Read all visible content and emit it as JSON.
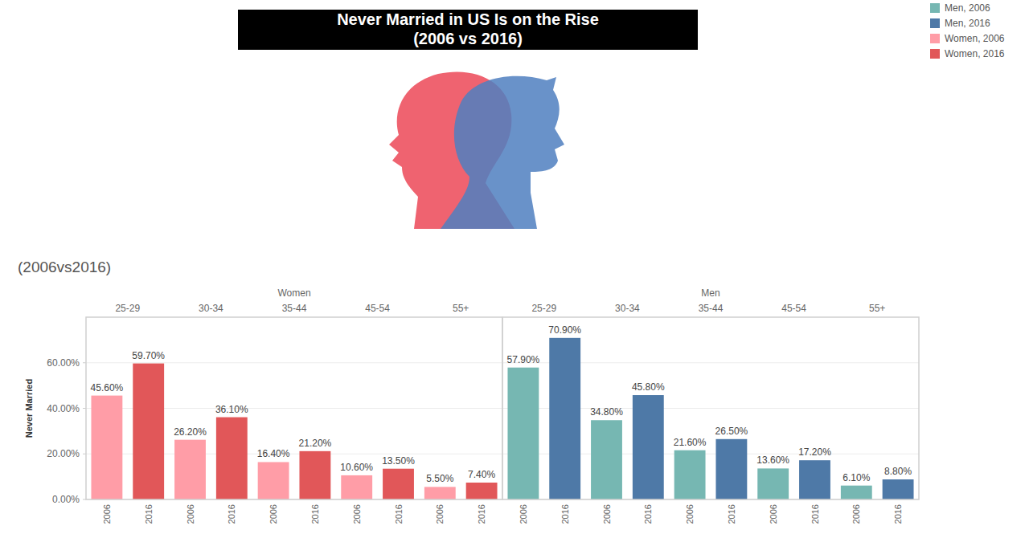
{
  "chart_data": {
    "type": "bar",
    "title": "Never Married in US Is on the Rise",
    "subtitle": "(2006 vs 2016)",
    "caption": "(2006vs2016)",
    "ylabel": "Never Married",
    "ylim": [
      0,
      80
    ],
    "yticks": [
      {
        "value": 0,
        "label": "0.00%"
      },
      {
        "value": 20,
        "label": "20.00%"
      },
      {
        "value": 40,
        "label": "40.00%"
      },
      {
        "value": 60,
        "label": "60.00%"
      }
    ],
    "grid": true,
    "legend": "top-right",
    "data_labels": true,
    "panels": [
      {
        "title": "Women",
        "categories": [
          "25-29",
          "30-34",
          "35-44",
          "45-54",
          "55+"
        ],
        "series": [
          {
            "name": "Women, 2006",
            "label": "2006",
            "color": "#ff9da7",
            "values": [
              45.6,
              26.2,
              16.4,
              10.6,
              5.5
            ],
            "value_labels": [
              "45.60%",
              "26.20%",
              "16.40%",
              "10.60%",
              "5.50%"
            ]
          },
          {
            "name": "Women, 2016",
            "label": "2016",
            "color": "#e15759",
            "values": [
              59.7,
              36.1,
              21.2,
              13.5,
              7.4
            ],
            "value_labels": [
              "59.70%",
              "36.10%",
              "21.20%",
              "13.50%",
              "7.40%"
            ]
          }
        ]
      },
      {
        "title": "Men",
        "categories": [
          "25-29",
          "30-34",
          "35-44",
          "45-54",
          "55+"
        ],
        "series": [
          {
            "name": "Men, 2006",
            "label": "2006",
            "color": "#76b7b2",
            "values": [
              57.9,
              34.8,
              21.6,
              13.6,
              6.1
            ],
            "value_labels": [
              "57.90%",
              "34.80%",
              "21.60%",
              "13.60%",
              "6.10%"
            ]
          },
          {
            "name": "Men, 2016",
            "label": "2016",
            "color": "#4e79a7",
            "values": [
              70.9,
              45.8,
              26.5,
              17.2,
              8.8
            ],
            "value_labels": [
              "70.90%",
              "45.80%",
              "26.50%",
              "17.20%",
              "8.80%"
            ]
          }
        ]
      }
    ]
  }
}
